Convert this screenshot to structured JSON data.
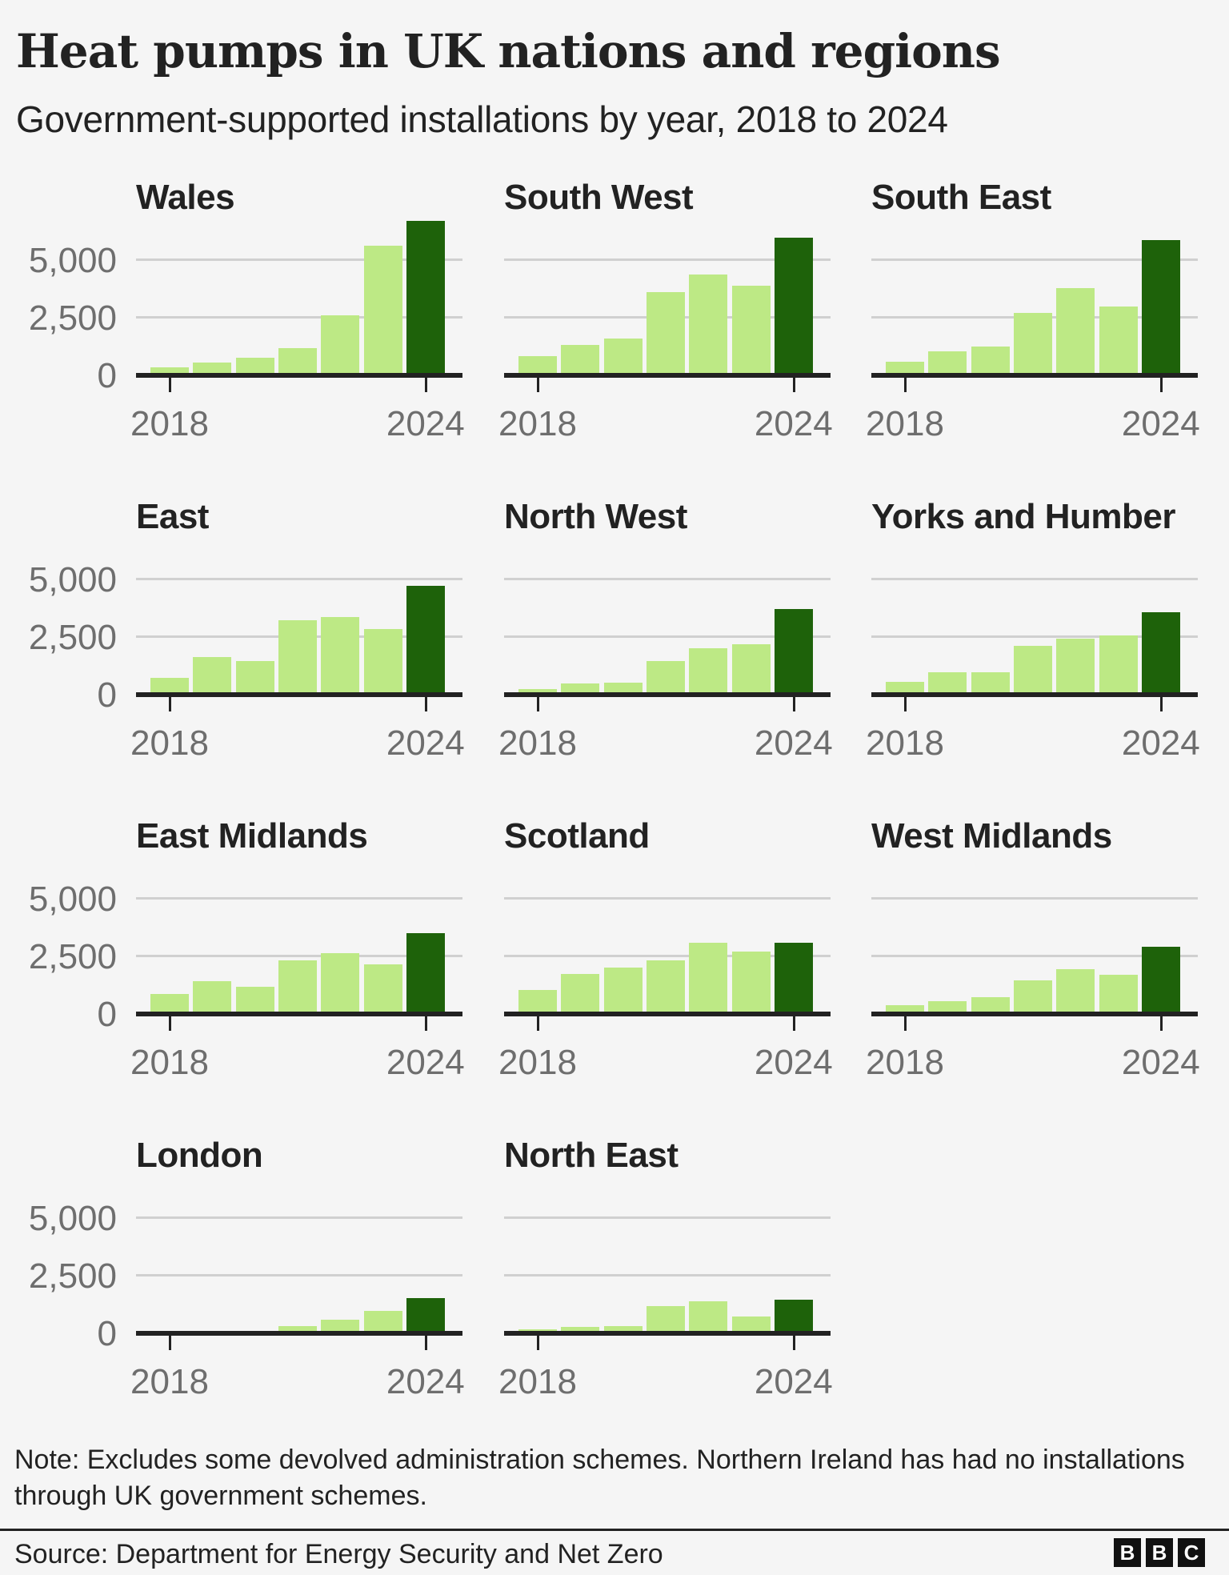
{
  "header": {
    "title": "Heat pumps in UK nations and regions",
    "subtitle": "Government-supported installations by year, 2018 to 2024"
  },
  "axis": {
    "y_ticks": [
      "5,000",
      "2,500",
      "0"
    ],
    "x_ticks": [
      "2018",
      "2024"
    ]
  },
  "colors": {
    "bar_light": "#bde985",
    "bar_highlight": "#1e620a",
    "axis": "#222222",
    "grid": "#d0d0d0",
    "background": "#f5f5f5"
  },
  "panels": [
    {
      "name": "Wales",
      "values": [
        310,
        510,
        740,
        1160,
        2580,
        5600,
        6670
      ]
    },
    {
      "name": "South West",
      "values": [
        810,
        1270,
        1560,
        3560,
        4340,
        3860,
        5940
      ]
    },
    {
      "name": "South East",
      "values": [
        550,
        1010,
        1200,
        2690,
        3760,
        2950,
        5840
      ]
    },
    {
      "name": "East",
      "values": [
        710,
        1610,
        1430,
        3180,
        3330,
        2800,
        4690
      ]
    },
    {
      "name": "North West",
      "values": [
        220,
        440,
        490,
        1440,
        1980,
        2140,
        3680
      ]
    },
    {
      "name": "Yorks and Humber",
      "values": [
        520,
        930,
        930,
        2090,
        2400,
        2520,
        3540
      ]
    },
    {
      "name": "East Midlands",
      "values": [
        840,
        1380,
        1130,
        2280,
        2590,
        2110,
        3480
      ]
    },
    {
      "name": "Scotland",
      "values": [
        990,
        1710,
        1970,
        2300,
        3070,
        2690,
        3060
      ]
    },
    {
      "name": "West Midlands",
      "values": [
        360,
        520,
        680,
        1420,
        1920,
        1680,
        2870
      ]
    },
    {
      "name": "London",
      "values": [
        20,
        30,
        40,
        290,
        570,
        950,
        1510
      ]
    },
    {
      "name": "North East",
      "values": [
        150,
        240,
        290,
        1130,
        1370,
        710,
        1430
      ]
    }
  ],
  "footer": {
    "note": "Note: Excludes some devolved administration schemes. Northern Ireland has had no installations through UK government schemes.",
    "source": "Source: Department for Energy Security and Net Zero",
    "logo_letters": [
      "B",
      "B",
      "C"
    ]
  },
  "chart_data": {
    "type": "bar",
    "title": "Heat pumps in UK nations and regions",
    "subtitle": "Government-supported installations by year, 2018 to 2024",
    "xlabel": "",
    "ylabel": "",
    "categories": [
      "2018",
      "2019",
      "2020",
      "2021",
      "2022",
      "2023",
      "2024"
    ],
    "x_tick_labels": [
      "2018",
      "2024"
    ],
    "y_tick_labels": [
      "0",
      "2,500",
      "5,000"
    ],
    "ylim": [
      0,
      7000
    ],
    "grid": true,
    "legend": "none",
    "highlight": "2024 bar in dark green",
    "small_multiples": true,
    "series": [
      {
        "name": "Wales",
        "values": [
          310,
          510,
          740,
          1160,
          2580,
          5600,
          6670
        ]
      },
      {
        "name": "South West",
        "values": [
          810,
          1270,
          1560,
          3560,
          4340,
          3860,
          5940
        ]
      },
      {
        "name": "South East",
        "values": [
          550,
          1010,
          1200,
          2690,
          3760,
          2950,
          5840
        ]
      },
      {
        "name": "East",
        "values": [
          710,
          1610,
          1430,
          3180,
          3330,
          2800,
          4690
        ]
      },
      {
        "name": "North West",
        "values": [
          220,
          440,
          490,
          1440,
          1980,
          2140,
          3680
        ]
      },
      {
        "name": "Yorks and Humber",
        "values": [
          520,
          930,
          930,
          2090,
          2400,
          2520,
          3540
        ]
      },
      {
        "name": "East Midlands",
        "values": [
          840,
          1380,
          1130,
          2280,
          2590,
          2110,
          3480
        ]
      },
      {
        "name": "Scotland",
        "values": [
          990,
          1710,
          1970,
          2300,
          3070,
          2690,
          3060
        ]
      },
      {
        "name": "West Midlands",
        "values": [
          360,
          520,
          680,
          1420,
          1920,
          1680,
          2870
        ]
      },
      {
        "name": "London",
        "values": [
          20,
          30,
          40,
          290,
          570,
          950,
          1510
        ]
      },
      {
        "name": "North East",
        "values": [
          150,
          240,
          290,
          1130,
          1370,
          710,
          1430
        ]
      }
    ],
    "annotations": [
      "Note: Excludes some devolved administration schemes. Northern Ireland has had no installations through UK government schemes.",
      "Source: Department for Energy Security and Net Zero"
    ]
  }
}
